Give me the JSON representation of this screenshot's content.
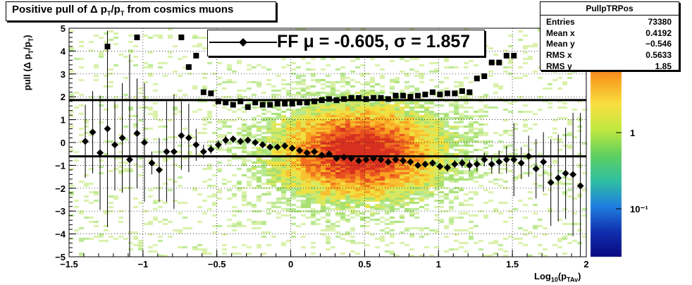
{
  "title": {
    "prefix": "Positive pull of ",
    "delta": "Δ p",
    "sub1": "T",
    "mid": "/p",
    "sub2": "T",
    "suffix": " from cosmics muons"
  },
  "stats": {
    "name": "PullpTRPos",
    "rows": [
      {
        "key": "Entries",
        "value": "73380"
      },
      {
        "key": "Mean x",
        "value": "0.4192"
      },
      {
        "key": "Mean y",
        "value": "−0.546"
      },
      {
        "key": "RMS x",
        "value": "0.5633"
      },
      {
        "key": "RMS y",
        "value": "1.85"
      }
    ]
  },
  "legend": {
    "text": "FF μ = -0.605, σ =   1.857"
  },
  "axes": {
    "xlabel": {
      "main": "Log",
      "sub": "10",
      "open": "(p",
      "sub2": "TAv",
      "close": ")"
    },
    "ylabel": {
      "main": "pull (Δ p",
      "sub": "T",
      "mid": "/p",
      "sub2": "T",
      "close": ")"
    }
  },
  "chart_data": {
    "type": "scatter",
    "title": "Positive pull of Δ pT/pT from cosmics muons",
    "xlabel": "Log10(pTAv)",
    "ylabel": "pull (Δ pT/pT)",
    "xlim": [
      -1.5,
      2
    ],
    "ylim": [
      -5,
      5
    ],
    "x_ticks": [
      -1.5,
      -1,
      -0.5,
      0,
      0.5,
      1,
      1.5,
      2
    ],
    "x_tick_labels": [
      "−1.5",
      "−1",
      "−0.5",
      "0",
      "0.5",
      "1",
      "1.5",
      "2"
    ],
    "y_ticks": [
      -5,
      -4,
      -3,
      -2,
      -1,
      0,
      1,
      2,
      3,
      4,
      5
    ],
    "y_tick_labels": [
      "−5",
      "−4",
      "−3",
      "−2",
      "−1",
      "0",
      "1",
      "2",
      "3",
      "4",
      "5"
    ],
    "z_scale": "log",
    "z_tick_labels": [
      "1",
      "10⁻¹"
    ],
    "horizontal_lines": [
      -0.605,
      1.857
    ],
    "series": [
      {
        "name": "mean",
        "marker": "diamond",
        "x": [
          -1.39,
          -1.34,
          -1.29,
          -1.24,
          -1.19,
          -1.14,
          -1.09,
          -1.04,
          -0.99,
          -0.94,
          -0.89,
          -0.84,
          -0.79,
          -0.74,
          -0.69,
          -0.64,
          -0.59,
          -0.54,
          -0.49,
          -0.44,
          -0.39,
          -0.34,
          -0.29,
          -0.24,
          -0.19,
          -0.14,
          -0.09,
          -0.04,
          0.01,
          0.06,
          0.11,
          0.16,
          0.21,
          0.26,
          0.31,
          0.36,
          0.41,
          0.46,
          0.51,
          0.56,
          0.61,
          0.66,
          0.71,
          0.76,
          0.81,
          0.86,
          0.91,
          0.96,
          1.01,
          1.06,
          1.11,
          1.16,
          1.21,
          1.26,
          1.31,
          1.36,
          1.41,
          1.46,
          1.51,
          1.56,
          1.61,
          1.66,
          1.71,
          1.76,
          1.81,
          1.86,
          1.91,
          1.96
        ],
        "y": [
          0.05,
          0.45,
          -0.45,
          0.6,
          -0.1,
          0.2,
          -0.75,
          0.4,
          0.0,
          -0.9,
          -1.2,
          -0.4,
          -0.4,
          0.3,
          0.2,
          -0.1,
          -0.4,
          -0.3,
          -0.1,
          0.1,
          0.15,
          0.05,
          0.1,
          0.0,
          -0.1,
          -0.2,
          -0.2,
          -0.15,
          -0.25,
          -0.35,
          -0.45,
          -0.4,
          -0.55,
          -0.5,
          -0.7,
          -0.65,
          -0.7,
          -0.8,
          -0.75,
          -0.7,
          -0.75,
          -0.85,
          -0.75,
          -0.8,
          -0.85,
          -1.0,
          -0.95,
          -0.9,
          -1.05,
          -1.1,
          -0.95,
          -0.9,
          -1.0,
          -0.95,
          -0.75,
          -0.95,
          -0.85,
          -0.75,
          -0.75,
          -0.9,
          -0.6,
          -1.15,
          -0.85,
          -1.75,
          -1.55,
          -1.35,
          -1.4,
          -1.9
        ],
        "err": [
          1.6,
          1.8,
          2.5,
          4.3,
          2.0,
          2.4,
          4.6,
          2.4,
          2.6,
          0.5,
          1.4,
          2.2,
          2.5,
          1.5,
          1.5,
          0.7,
          0.3,
          0.2,
          0.2,
          0.2,
          0.15,
          0.15,
          0.15,
          0.15,
          0.12,
          0.12,
          0.12,
          0.12,
          0.12,
          0.12,
          0.12,
          0.12,
          0.12,
          0.12,
          0.12,
          0.12,
          0.12,
          0.12,
          0.12,
          0.12,
          0.12,
          0.12,
          0.12,
          0.12,
          0.12,
          0.15,
          0.15,
          0.15,
          0.15,
          0.18,
          0.18,
          0.2,
          0.25,
          0.3,
          0.3,
          0.4,
          0.5,
          0.6,
          1.6,
          0.7,
          0.9,
          1.3,
          1.3,
          1.9,
          1.9,
          2.0,
          2.7,
          3.2
        ]
      },
      {
        "name": "rms",
        "marker": "square",
        "x": [
          -1.24,
          -1.04,
          -0.74,
          -0.69,
          -0.64,
          -0.59,
          -0.54,
          -0.49,
          -0.44,
          -0.39,
          -0.34,
          -0.29,
          -0.24,
          -0.19,
          -0.14,
          -0.09,
          -0.04,
          0.01,
          0.06,
          0.11,
          0.16,
          0.21,
          0.26,
          0.31,
          0.36,
          0.41,
          0.46,
          0.51,
          0.56,
          0.61,
          0.66,
          0.71,
          0.76,
          0.81,
          0.86,
          0.91,
          0.96,
          1.01,
          1.06,
          1.11,
          1.16,
          1.21,
          1.26,
          1.31,
          1.36,
          1.41,
          1.46,
          1.51
        ],
        "y": [
          4.2,
          4.6,
          4.6,
          3.3,
          3.8,
          2.2,
          2.15,
          1.8,
          1.75,
          1.65,
          1.8,
          1.55,
          1.75,
          1.65,
          1.65,
          1.7,
          1.7,
          1.7,
          1.75,
          1.75,
          1.8,
          1.85,
          1.9,
          1.85,
          1.9,
          1.95,
          1.95,
          1.9,
          1.95,
          1.95,
          1.9,
          2.05,
          2.05,
          2.0,
          2.05,
          2.1,
          2.2,
          2.1,
          2.15,
          2.15,
          2.25,
          2.2,
          2.8,
          2.9,
          3.5,
          3.5,
          3.8,
          3.8
        ]
      }
    ],
    "legend_entries": [
      "FF μ = -0.605, σ =   1.857"
    ]
  }
}
